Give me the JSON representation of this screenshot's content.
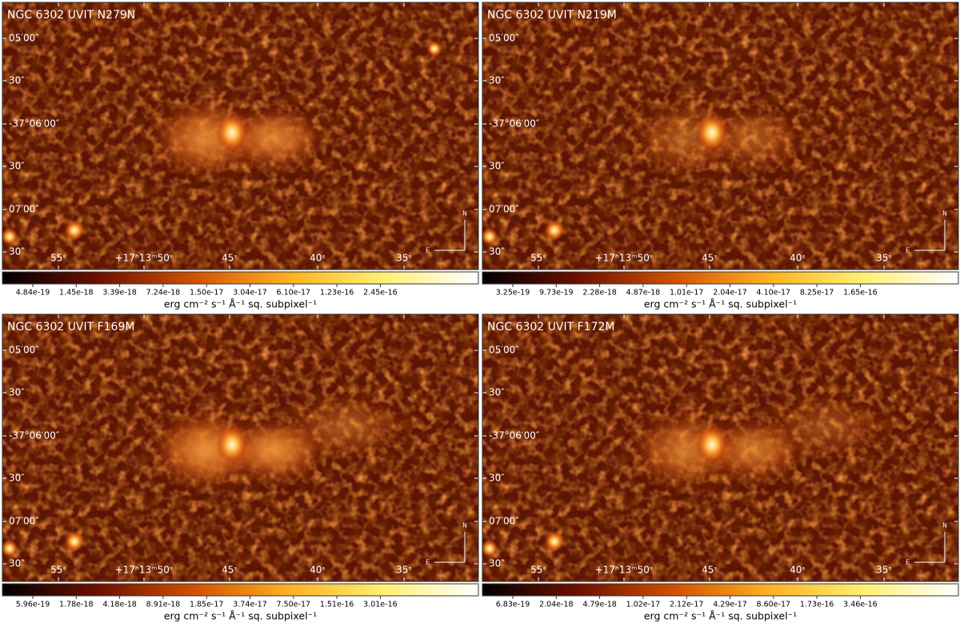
{
  "panels": [
    {
      "title": "NGC 6302 UVIT N279N",
      "colorbar_ticks": [
        "4.84e-19",
        "1.45e-18",
        "3.39e-18",
        "7.24e-18",
        "1.50e-17",
        "3.04e-17",
        "6.10e-17",
        "1.23e-16",
        "2.45e-16"
      ]
    },
    {
      "title": "NGC 6302 UVIT N219M",
      "colorbar_ticks": [
        "3.25e-19",
        "9.73e-19",
        "2.28e-18",
        "4.87e-18",
        "1.01e-17",
        "2.04e-17",
        "4.10e-17",
        "8.25e-17",
        "1.65e-16"
      ]
    },
    {
      "title": "NGC 6302 UVIT F169M",
      "colorbar_ticks": [
        "5.96e-19",
        "1.78e-18",
        "4.18e-18",
        "8.91e-18",
        "1.85e-17",
        "3.74e-17",
        "7.50e-17",
        "1.51e-16",
        "3.01e-16"
      ]
    },
    {
      "title": "NGC 6302 UVIT F172M",
      "colorbar_ticks": [
        "6.83e-19",
        "2.04e-18",
        "4.79e-18",
        "1.02e-17",
        "2.12e-17",
        "4.29e-17",
        "8.60e-17",
        "1.73e-16",
        "3.46e-16"
      ]
    }
  ],
  "y_tick_labels": [
    "05′00″",
    "30″",
    "-37°06′00″",
    "30″",
    "07′00″",
    "30″"
  ],
  "x_tick_labels": [
    "55ˢ",
    "+17ʰ13ᵐ50ˢ",
    "45ˢ",
    "40ˢ",
    "35ˢ"
  ],
  "colorbar_label": "erg cm⁻² s⁻¹ Å⁻¹ sq. subpixel⁻¹",
  "compass": {
    "north": "N",
    "east": "E"
  }
}
